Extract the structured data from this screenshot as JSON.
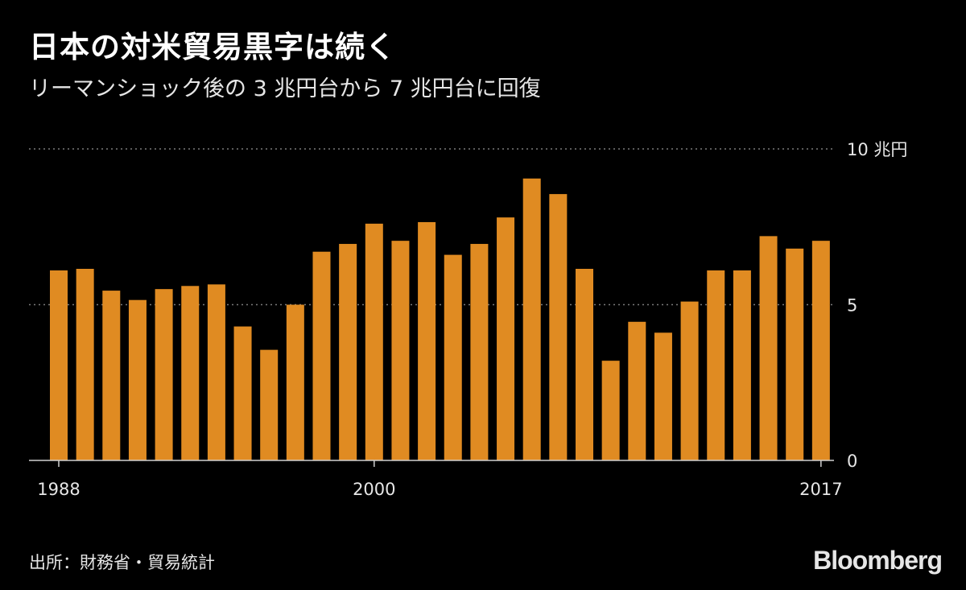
{
  "title": "日本の対米貿易黒字は続く",
  "subtitle": "リーマンショック後の 3 兆円台から 7 兆円台に回復",
  "source": "出所：財務省・貿易統計",
  "logo": "Bloomberg",
  "colors": {
    "bar": "#E08B22",
    "background": "#000000",
    "text": "#e6e6e6",
    "grid": "#7a7a7a"
  },
  "chart_data": {
    "type": "bar",
    "title": "日本の対米貿易黒字は続く",
    "ylabel": "",
    "ylim": [
      0,
      10
    ],
    "y_ticks": [
      {
        "value": 10,
        "label": "10 兆円"
      },
      {
        "value": 5,
        "label": "5"
      },
      {
        "value": 0,
        "label": "0"
      }
    ],
    "x_tick_labels": [
      {
        "year": 1988,
        "label": "1988"
      },
      {
        "year": 2000,
        "label": "2000"
      },
      {
        "year": 2017,
        "label": "2017"
      }
    ],
    "categories": [
      1988,
      1989,
      1990,
      1991,
      1992,
      1993,
      1994,
      1995,
      1996,
      1997,
      1998,
      1999,
      2000,
      2001,
      2002,
      2003,
      2004,
      2005,
      2006,
      2007,
      2008,
      2009,
      2010,
      2011,
      2012,
      2013,
      2014,
      2015,
      2016,
      2017
    ],
    "values": [
      6.1,
      6.15,
      5.45,
      5.15,
      5.5,
      5.6,
      5.65,
      4.3,
      3.55,
      5.0,
      6.7,
      6.95,
      7.6,
      7.05,
      7.65,
      6.6,
      6.95,
      7.8,
      9.05,
      8.55,
      6.15,
      3.2,
      4.45,
      4.1,
      5.1,
      6.1,
      6.1,
      7.2,
      6.8,
      7.05
    ]
  }
}
